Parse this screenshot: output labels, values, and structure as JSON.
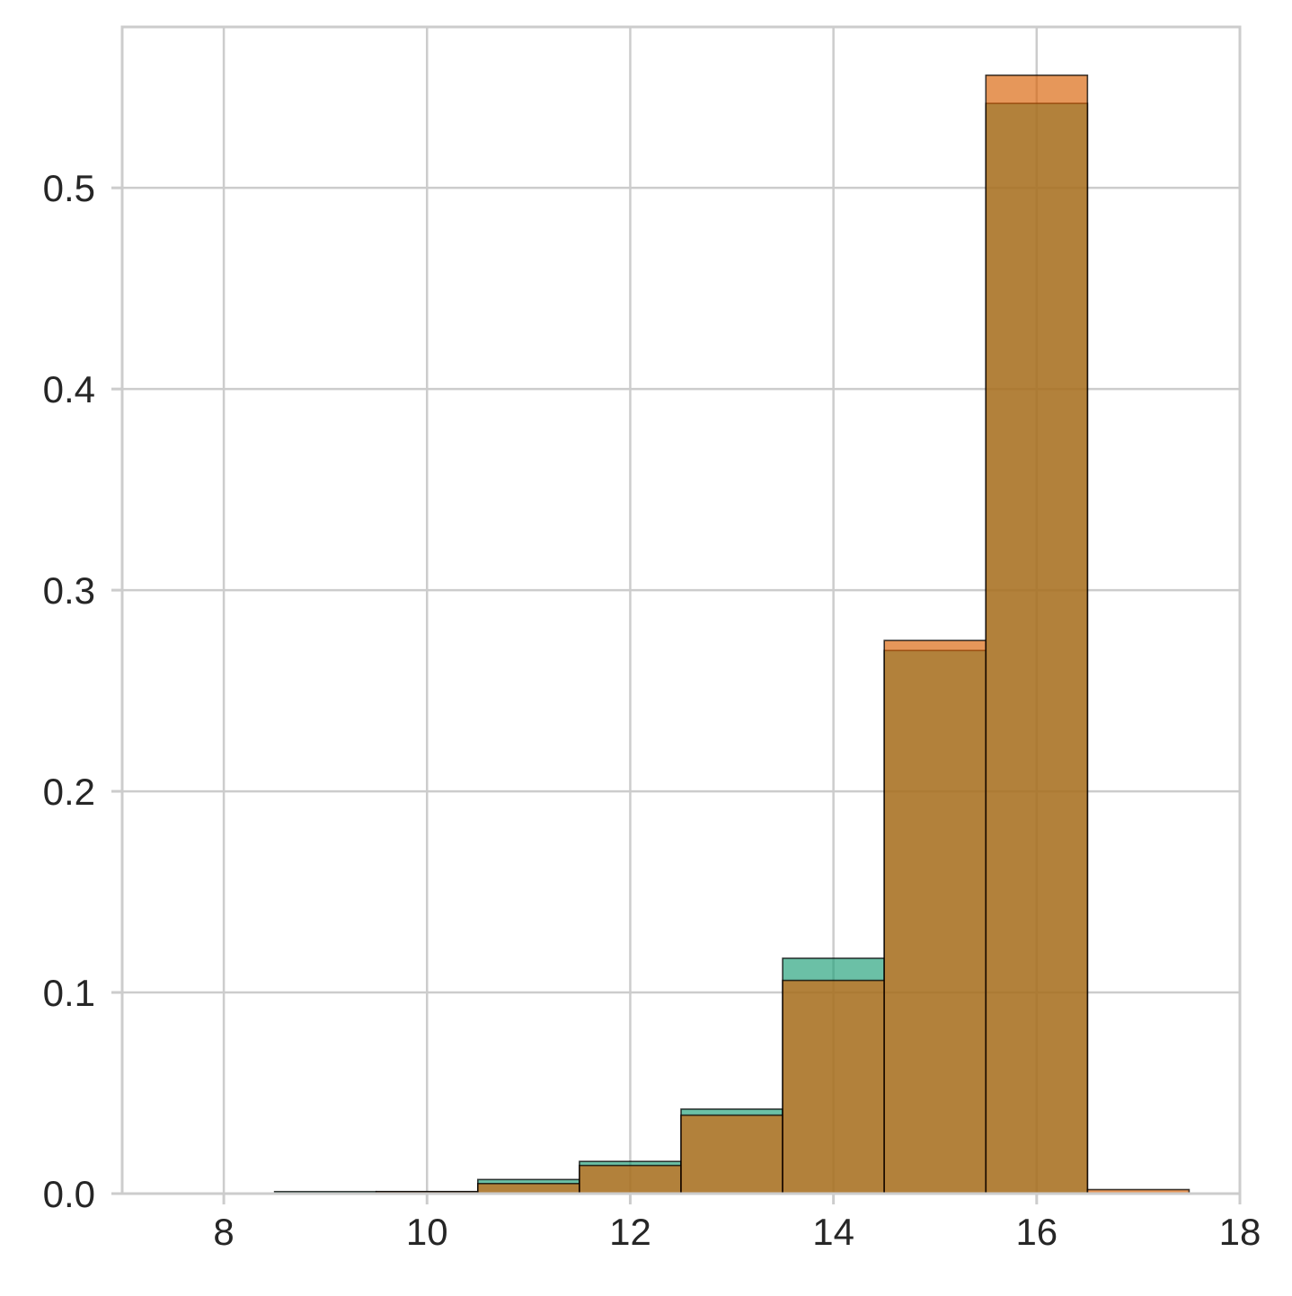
{
  "chart_data": {
    "type": "bar",
    "histogram": true,
    "title": "",
    "xlabel": "",
    "ylabel": "",
    "xlim": [
      7,
      18
    ],
    "ylim": [
      0,
      0.58
    ],
    "xticks": [
      8,
      10,
      12,
      14,
      16,
      18
    ],
    "yticks": [
      0.0,
      0.1,
      0.2,
      0.3,
      0.4,
      0.5
    ],
    "xtick_labels": [
      "8",
      "10",
      "12",
      "14",
      "16",
      "18"
    ],
    "ytick_labels": [
      "0.0",
      "0.1",
      "0.2",
      "0.3",
      "0.4",
      "0.5"
    ],
    "grid": true,
    "legend": false,
    "bin_edges": [
      8.5,
      9.5,
      10.5,
      11.5,
      12.5,
      13.5,
      14.5,
      15.5,
      16.5,
      17.5
    ],
    "series": [
      {
        "color": "#1b9e77",
        "values": [
          0.001,
          0.001,
          0.007,
          0.016,
          0.042,
          0.117,
          0.27,
          0.542,
          0.0
        ]
      },
      {
        "color": "#d95f02",
        "values": [
          0.0,
          0.001,
          0.005,
          0.014,
          0.039,
          0.106,
          0.275,
          0.556,
          0.002
        ]
      }
    ],
    "colors": {
      "grid": "#cccccc",
      "spine": "#cccccc",
      "text": "#262626",
      "edge": "#000000"
    }
  }
}
